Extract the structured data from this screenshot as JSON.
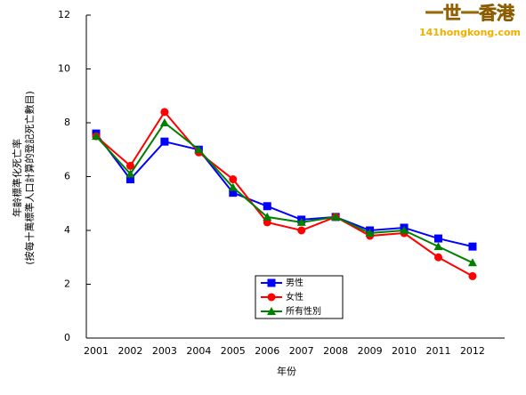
{
  "chart_data": {
    "type": "line",
    "xlabel": "年份",
    "ylabel": [
      "年齡標準化死亡率",
      "(按每十萬標準人口計算的登記死亡數目)"
    ],
    "watermark": {
      "title": "一世一香港",
      "url": "141hongkong.com"
    },
    "categories": [
      "2001",
      "2002",
      "2003",
      "2004",
      "2005",
      "2006",
      "2007",
      "2008",
      "2009",
      "2010",
      "2011",
      "2012"
    ],
    "series": [
      {
        "name": "男性",
        "color": "#0000ff",
        "marker": "square",
        "values": [
          7.6,
          5.9,
          7.3,
          7.0,
          5.4,
          4.9,
          4.4,
          4.5,
          4.0,
          4.1,
          3.7,
          3.4
        ]
      },
      {
        "name": "女性",
        "color": "#ff0000",
        "marker": "circle",
        "values": [
          7.5,
          6.4,
          8.4,
          6.9,
          5.9,
          4.3,
          4.0,
          4.5,
          3.8,
          3.9,
          3.0,
          2.3
        ]
      },
      {
        "name": "所有性別",
        "color": "#008000",
        "marker": "triangle",
        "values": [
          7.5,
          6.1,
          8.0,
          7.0,
          5.6,
          4.5,
          4.3,
          4.5,
          3.9,
          4.0,
          3.4,
          2.8
        ]
      }
    ],
    "ylim": [
      0,
      12
    ],
    "yticks": [
      0,
      2,
      4,
      6,
      8,
      10,
      12
    ],
    "grid": false,
    "legend": "bottom-center"
  }
}
